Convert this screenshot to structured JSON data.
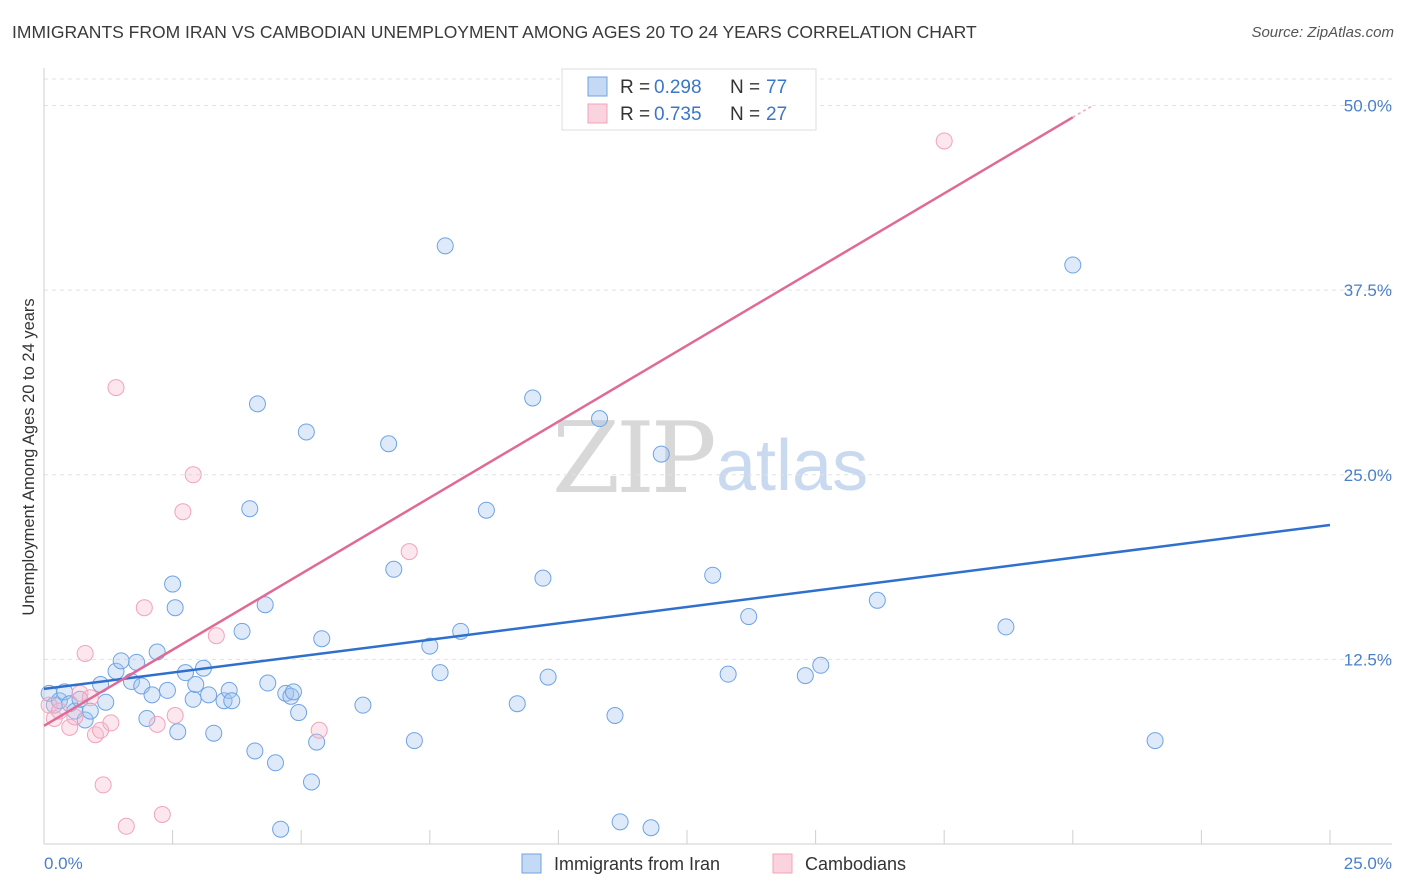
{
  "title": "IMMIGRANTS FROM IRAN VS CAMBODIAN UNEMPLOYMENT AMONG AGES 20 TO 24 YEARS CORRELATION CHART",
  "source": "Source: ZipAtlas.com",
  "watermark": {
    "part1": "ZIP",
    "part2": "atlas"
  },
  "colors": {
    "blue": "#6fa3e4",
    "blue_line": "#2f6fce",
    "pink": "#f2a3bb",
    "pink_line": "#e06a95",
    "tick_text": "#4a7fc9"
  },
  "legend": {
    "rows": [
      {
        "r_label": "R =",
        "r_value": "0.298",
        "n_label": "N =",
        "n_value": "77"
      },
      {
        "r_label": "R =",
        "r_value": "0.735",
        "n_label": "N =",
        "n_value": "27"
      }
    ]
  },
  "bottom_legend": [
    "Immigrants from Iran",
    "Cambodians"
  ],
  "chart_data": {
    "type": "scatter",
    "title": "IMMIGRANTS FROM IRAN VS CAMBODIAN UNEMPLOYMENT AMONG AGES 20 TO 24 YEARS CORRELATION CHART",
    "xlabel": "",
    "ylabel": "Unemployment Among Ages 20 to 24 years",
    "xlim": [
      0,
      25
    ],
    "ylim": [
      0,
      52
    ],
    "x_tick_labels": [
      "0.0%",
      "25.0%"
    ],
    "y_ticks": [
      12.5,
      25.0,
      37.5,
      50.0
    ],
    "y_tick_labels": [
      "12.5%",
      "25.0%",
      "37.5%",
      "50.0%"
    ],
    "series": [
      {
        "name": "Immigrants from Iran",
        "r": 0.298,
        "n": 77,
        "trend": {
          "x": [
            0,
            25
          ],
          "y": [
            10.5,
            21.6
          ]
        },
        "points": [
          [
            0.1,
            10.2
          ],
          [
            0.2,
            9.4
          ],
          [
            0.3,
            9.7
          ],
          [
            0.4,
            10.3
          ],
          [
            0.5,
            9.5
          ],
          [
            0.6,
            9.0
          ],
          [
            0.7,
            9.8
          ],
          [
            0.8,
            8.4
          ],
          [
            0.9,
            9.0
          ],
          [
            1.1,
            10.8
          ],
          [
            1.2,
            9.6
          ],
          [
            1.4,
            11.7
          ],
          [
            1.5,
            12.4
          ],
          [
            1.7,
            11.0
          ],
          [
            1.8,
            12.3
          ],
          [
            1.9,
            10.7
          ],
          [
            2.0,
            8.5
          ],
          [
            2.1,
            10.1
          ],
          [
            2.2,
            13.0
          ],
          [
            2.4,
            10.4
          ],
          [
            2.5,
            17.6
          ],
          [
            2.55,
            16.0
          ],
          [
            2.6,
            7.6
          ],
          [
            2.75,
            11.6
          ],
          [
            2.9,
            9.8
          ],
          [
            2.95,
            10.8
          ],
          [
            3.1,
            11.9
          ],
          [
            3.2,
            10.1
          ],
          [
            3.3,
            7.5
          ],
          [
            3.5,
            9.7
          ],
          [
            3.6,
            10.4
          ],
          [
            3.65,
            9.7
          ],
          [
            3.85,
            14.4
          ],
          [
            4.0,
            22.7
          ],
          [
            4.1,
            6.3
          ],
          [
            4.15,
            29.8
          ],
          [
            4.3,
            16.2
          ],
          [
            4.35,
            10.9
          ],
          [
            4.5,
            5.5
          ],
          [
            4.6,
            1.0
          ],
          [
            4.7,
            10.2
          ],
          [
            4.8,
            10.0
          ],
          [
            4.85,
            10.3
          ],
          [
            4.95,
            8.9
          ],
          [
            5.1,
            27.9
          ],
          [
            5.2,
            4.2
          ],
          [
            5.3,
            6.9
          ],
          [
            5.4,
            13.9
          ],
          [
            6.2,
            9.4
          ],
          [
            6.7,
            27.1
          ],
          [
            6.8,
            18.6
          ],
          [
            7.2,
            7.0
          ],
          [
            7.5,
            13.4
          ],
          [
            7.7,
            11.6
          ],
          [
            7.8,
            40.5
          ],
          [
            8.1,
            14.4
          ],
          [
            8.6,
            22.6
          ],
          [
            9.2,
            9.5
          ],
          [
            9.5,
            30.2
          ],
          [
            9.7,
            18.0
          ],
          [
            9.8,
            11.3
          ],
          [
            10.8,
            28.8
          ],
          [
            11.1,
            8.7
          ],
          [
            11.2,
            1.5
          ],
          [
            11.8,
            1.1
          ],
          [
            12.0,
            26.4
          ],
          [
            13.0,
            18.2
          ],
          [
            13.3,
            11.5
          ],
          [
            13.7,
            15.4
          ],
          [
            14.8,
            11.4
          ],
          [
            15.1,
            12.1
          ],
          [
            16.2,
            16.5
          ],
          [
            18.7,
            14.7
          ],
          [
            20.0,
            39.2
          ],
          [
            21.6,
            7.0
          ]
        ]
      },
      {
        "name": "Cambodians",
        "r": 0.735,
        "n": 27,
        "trend": {
          "x": [
            0,
            20
          ],
          "y": [
            8.0,
            49.2
          ]
        },
        "points": [
          [
            0.1,
            9.4
          ],
          [
            0.2,
            8.5
          ],
          [
            0.3,
            9.0
          ],
          [
            0.5,
            7.9
          ],
          [
            0.6,
            8.6
          ],
          [
            0.7,
            10.2
          ],
          [
            0.8,
            12.9
          ],
          [
            0.9,
            9.9
          ],
          [
            1.0,
            7.4
          ],
          [
            1.1,
            7.7
          ],
          [
            1.15,
            4.0
          ],
          [
            1.3,
            8.2
          ],
          [
            1.4,
            30.9
          ],
          [
            1.6,
            1.2
          ],
          [
            1.95,
            16.0
          ],
          [
            2.2,
            8.1
          ],
          [
            2.3,
            2.0
          ],
          [
            2.55,
            8.7
          ],
          [
            2.7,
            22.5
          ],
          [
            2.9,
            25.0
          ],
          [
            3.35,
            14.1
          ],
          [
            5.35,
            7.7
          ],
          [
            7.1,
            19.8
          ],
          [
            17.5,
            47.6
          ]
        ]
      }
    ]
  }
}
